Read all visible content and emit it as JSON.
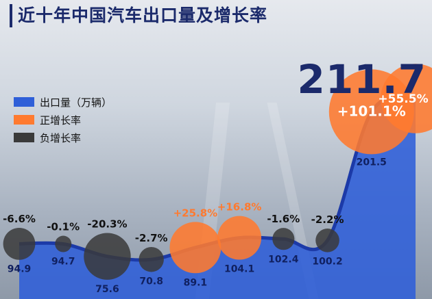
{
  "title": "近十年中国汽车出口量及增长率",
  "highlight_value": "211.7",
  "legend": {
    "export": "出口量（万辆）",
    "positive": "正增长率",
    "negative": "负增长率"
  },
  "colors": {
    "title": "#1b2a6b",
    "export_area": "#2f5fd8",
    "export_line": "#1c3aa8",
    "positive": "#ff7a2f",
    "negative": "#3a3a3a"
  },
  "chart_data": {
    "type": "area",
    "series": [
      {
        "name": "出口量（万辆）",
        "values": [
          94.9,
          94.7,
          75.6,
          70.8,
          89.1,
          104.1,
          102.4,
          100.2,
          201.5,
          211.7
        ]
      },
      {
        "name": "增长率",
        "values": [
          "-6.6%",
          "-0.1%",
          "-20.3%",
          "-2.7%",
          "+25.8%",
          "+16.8%",
          "-1.6%",
          "-2.2%",
          "+101.1%",
          "+55.5%"
        ]
      }
    ],
    "value_labels": [
      "94.9",
      "94.7",
      "75.6",
      "70.8",
      "89.1",
      "104.1",
      "102.4",
      "100.2",
      "201.5",
      ""
    ],
    "growth_numeric": [
      -6.6,
      -0.1,
      -20.3,
      -2.7,
      25.8,
      16.8,
      -1.6,
      -2.2,
      101.1,
      55.5
    ]
  }
}
